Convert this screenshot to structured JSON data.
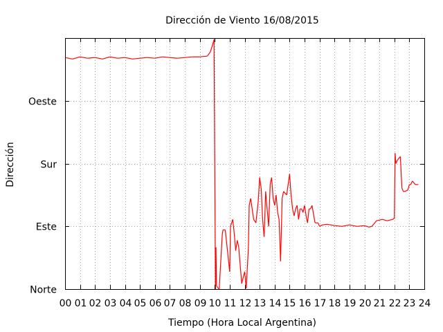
{
  "chart_data": {
    "type": "line",
    "title": "Dirección de Viento 16/08/2015",
    "xlabel": "Tiempo (Hora Local Argentina)",
    "ylabel": "Dirección",
    "xlim": [
      0,
      24
    ],
    "ylim": [
      0,
      360
    ],
    "x_ticks": [
      0,
      1,
      2,
      3,
      4,
      5,
      6,
      7,
      8,
      9,
      10,
      11,
      12,
      13,
      14,
      15,
      16,
      17,
      18,
      19,
      20,
      21,
      22,
      23,
      24
    ],
    "x_tick_labels": [
      "00",
      "01",
      "02",
      "03",
      "04",
      "05",
      "06",
      "07",
      "08",
      "09",
      "10",
      "11",
      "12",
      "13",
      "14",
      "15",
      "16",
      "17",
      "18",
      "19",
      "20",
      "21",
      "22",
      "23",
      "24"
    ],
    "y_ticks": [
      0,
      90,
      180,
      270
    ],
    "y_tick_labels": [
      "Norte",
      "Este",
      "Sur",
      "Oeste"
    ],
    "grid": true,
    "series": [
      {
        "color": "#ff0000",
        "x": [
          0.0,
          0.5,
          1.0,
          1.5,
          2.0,
          2.5,
          3.0,
          3.5,
          4.0,
          4.5,
          5.0,
          5.5,
          6.0,
          6.5,
          7.0,
          7.5,
          8.0,
          8.5,
          9.0,
          9.5,
          9.7,
          9.85,
          9.95,
          10.05,
          10.08,
          10.12,
          10.2,
          10.3,
          10.5,
          10.55,
          10.7,
          11.0,
          11.05,
          11.2,
          11.3,
          11.4,
          11.5,
          11.6,
          11.8,
          12.0,
          12.1,
          12.25,
          12.3,
          12.4,
          12.5,
          12.6,
          12.75,
          12.9,
          13.0,
          13.1,
          13.2,
          13.3,
          13.4,
          13.5,
          13.6,
          13.7,
          13.8,
          13.9,
          14.0,
          14.1,
          14.2,
          14.3,
          14.4,
          14.5,
          14.6,
          14.8,
          15.0,
          15.1,
          15.2,
          15.3,
          15.4,
          15.5,
          15.6,
          15.7,
          15.8,
          15.9,
          16.0,
          16.1,
          16.2,
          16.3,
          16.4,
          16.5,
          16.7,
          16.9,
          17.0,
          17.2,
          17.5,
          18.0,
          18.5,
          19.0,
          19.5,
          20.0,
          20.3,
          20.5,
          20.8,
          21.2,
          21.5,
          21.9,
          22.0,
          22.05,
          22.1,
          22.2,
          22.4,
          22.5,
          22.6,
          22.7,
          22.9,
          23.0,
          23.1,
          23.2,
          23.4,
          23.6
        ],
        "y": [
          332,
          330,
          333,
          331,
          332,
          330,
          333,
          331,
          332,
          330,
          331,
          332,
          331,
          333,
          332,
          331,
          332,
          333,
          333,
          334,
          340,
          350,
          358,
          0,
          60,
          5,
          2,
          0,
          78,
          85,
          85,
          25,
          90,
          100,
          80,
          55,
          70,
          60,
          8,
          25,
          1,
          60,
          120,
          130,
          115,
          100,
          95,
          125,
          160,
          145,
          100,
          75,
          140,
          115,
          90,
          150,
          160,
          130,
          120,
          135,
          110,
          100,
          40,
          130,
          140,
          135,
          165,
          135,
          115,
          105,
          115,
          120,
          100,
          115,
          115,
          110,
          120,
          105,
          95,
          115,
          115,
          120,
          95,
          95,
          90,
          92,
          93,
          91,
          90,
          92,
          90,
          91,
          89,
          90,
          98,
          100,
          98,
          100,
          102,
          195,
          180,
          185,
          190,
          145,
          140,
          140,
          142,
          150,
          150,
          155,
          150,
          150
        ]
      }
    ]
  }
}
